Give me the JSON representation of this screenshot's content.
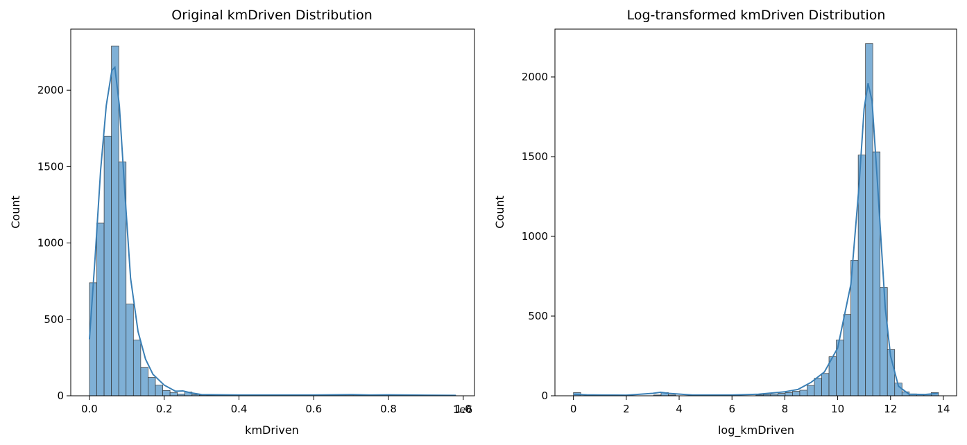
{
  "charts": [
    {
      "title": "Original kmDriven Distribution",
      "xlabel": "kmDriven",
      "ylabel": "Count",
      "offset_text": "1e6",
      "x_ticks": [
        "0.0",
        "0.2",
        "0.4",
        "0.6",
        "0.8",
        "1.0"
      ],
      "y_ticks": [
        "0",
        "500",
        "1000",
        "1500",
        "2000"
      ]
    },
    {
      "title": "Log-transformed kmDriven Distribution",
      "xlabel": "log_kmDriven",
      "ylabel": "Count",
      "offset_text": "",
      "x_ticks": [
        "0",
        "2",
        "4",
        "6",
        "8",
        "10",
        "12",
        "14"
      ],
      "y_ticks": [
        "0",
        "500",
        "1000",
        "1500",
        "2000"
      ]
    }
  ],
  "chart_data": [
    {
      "type": "histogram",
      "title": "Original kmDriven Distribution",
      "xlabel": "kmDriven",
      "ylabel": "Count",
      "x_scale_note": "1e6",
      "xlim": [
        -0.05,
        1.03
      ],
      "ylim": [
        0,
        2400
      ],
      "x_ticks": [
        0.0,
        0.2,
        0.4,
        0.6,
        0.8,
        1.0
      ],
      "y_ticks": [
        0,
        500,
        1000,
        1500,
        2000
      ],
      "bin_start": 0.0,
      "bin_width": 0.0196,
      "counts": [
        740,
        1130,
        1700,
        2290,
        1530,
        600,
        365,
        185,
        120,
        70,
        35,
        22,
        12,
        25,
        8,
        5,
        4,
        3,
        3,
        2,
        2,
        2,
        2,
        2,
        2,
        2,
        2,
        2,
        2,
        2,
        2,
        2,
        2,
        2,
        2,
        2,
        2,
        2,
        2,
        2,
        2,
        2,
        2,
        2,
        2,
        2,
        2,
        2,
        2,
        2
      ],
      "kde": {
        "x": [
          0.0,
          0.015,
          0.03,
          0.045,
          0.06,
          0.068,
          0.08,
          0.095,
          0.11,
          0.13,
          0.15,
          0.17,
          0.2,
          0.23,
          0.25,
          0.27,
          0.3,
          0.4,
          0.6,
          0.7,
          0.75,
          0.8,
          0.9,
          0.98
        ],
        "y": [
          370,
          900,
          1480,
          1900,
          2130,
          2150,
          1900,
          1320,
          770,
          420,
          240,
          140,
          70,
          30,
          32,
          20,
          8,
          5,
          5,
          8,
          5,
          6,
          4,
          3
        ]
      },
      "bar_color": "#7fb0d6",
      "line_color": "#3a7fb5"
    },
    {
      "type": "histogram",
      "title": "Log-transformed kmDriven Distribution",
      "xlabel": "log_kmDriven",
      "ylabel": "Count",
      "xlim": [
        -0.7,
        14.5
      ],
      "ylim": [
        0,
        2300
      ],
      "x_ticks": [
        0,
        2,
        4,
        6,
        8,
        10,
        12,
        14
      ],
      "y_ticks": [
        0,
        500,
        1000,
        1500,
        2000
      ],
      "bin_start": 0.0,
      "bin_width": 0.2763,
      "counts": [
        20,
        0,
        0,
        0,
        0,
        0,
        0,
        0,
        0,
        0,
        0,
        5,
        20,
        5,
        0,
        0,
        0,
        0,
        0,
        0,
        0,
        0,
        0,
        0,
        0,
        5,
        8,
        10,
        15,
        20,
        28,
        35,
        65,
        110,
        140,
        245,
        350,
        510,
        850,
        1510,
        2210,
        1530,
        680,
        290,
        80,
        25,
        12,
        10,
        8,
        20
      ],
      "kde": {
        "x": [
          0.0,
          0.5,
          1.0,
          2.0,
          3.0,
          3.3,
          3.6,
          4.5,
          6.0,
          7.0,
          8.0,
          8.5,
          9.0,
          9.5,
          10.0,
          10.5,
          10.8,
          11.0,
          11.15,
          11.3,
          11.5,
          11.8,
          12.0,
          12.3,
          12.7,
          13.3,
          13.8
        ],
        "y": [
          10,
          6,
          5,
          4,
          15,
          22,
          15,
          5,
          5,
          10,
          25,
          40,
          85,
          150,
          300,
          700,
          1300,
          1800,
          1960,
          1850,
          1350,
          550,
          250,
          60,
          10,
          8,
          15
        ]
      },
      "bar_color": "#7fb0d6",
      "line_color": "#3a7fb5"
    }
  ]
}
